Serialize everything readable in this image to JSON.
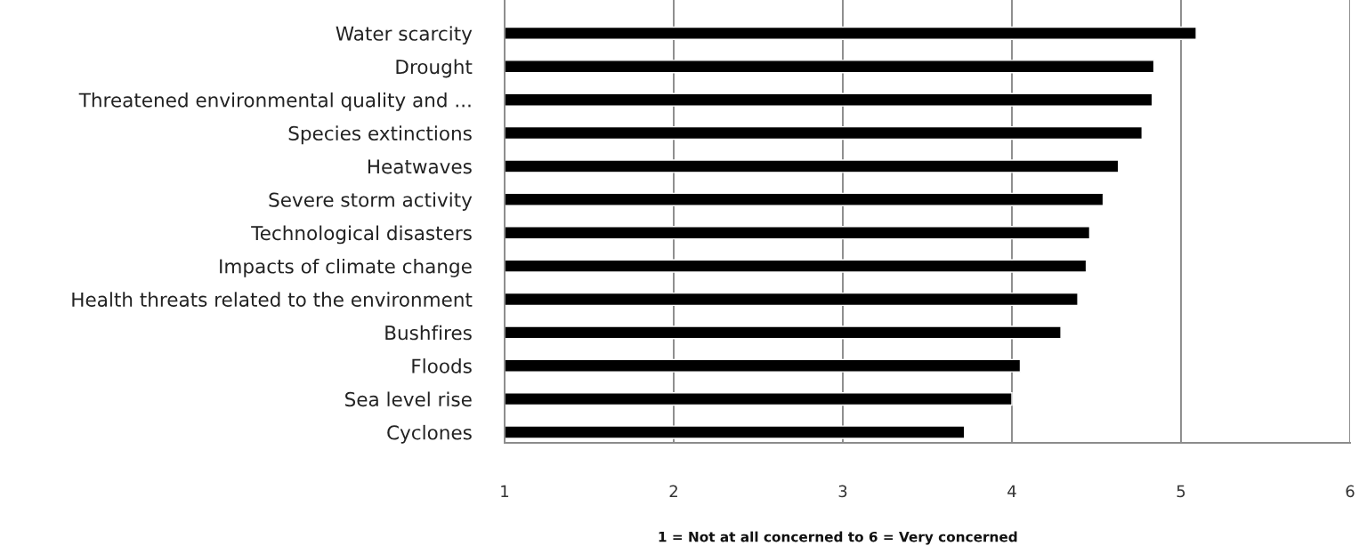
{
  "chart_data": {
    "type": "bar",
    "orientation": "horizontal",
    "categories": [
      "Water scarcity",
      "Drought",
      "Threatened environmental quality and ...",
      "Species extinctions",
      "Heatwaves",
      "Severe storm activity",
      "Technological disasters",
      "Impacts of climate change",
      "Health threats related to the environment",
      "Bushfires",
      "Floods",
      "Sea level rise",
      "Cyclones"
    ],
    "values": [
      5.09,
      4.84,
      4.83,
      4.77,
      4.63,
      4.54,
      4.46,
      4.44,
      4.39,
      4.29,
      4.05,
      4.0,
      3.72
    ],
    "color": "#000000",
    "xlabel": "1 = Not at all concerned to 6 = Very concerned",
    "xlim": [
      1,
      6
    ],
    "xticks": [
      1,
      2,
      3,
      4,
      5,
      6
    ],
    "grid": "x",
    "legend": false
  }
}
